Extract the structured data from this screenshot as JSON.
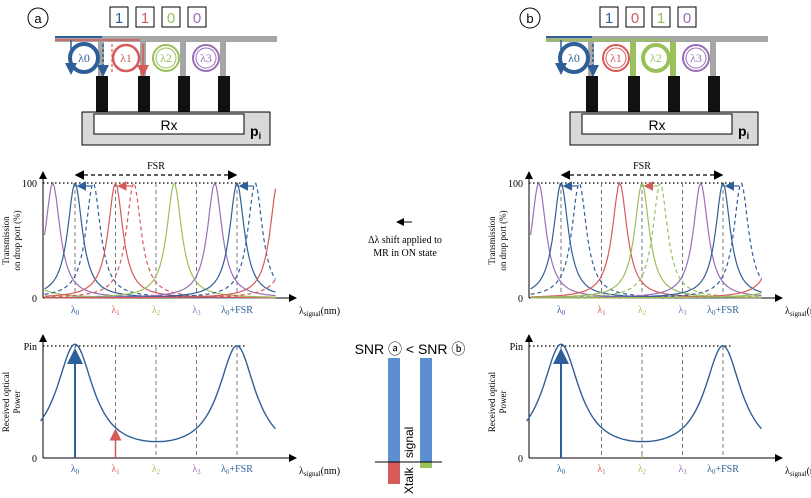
{
  "colors": {
    "blue": "#2f5f98",
    "red": "#d65a5a",
    "green": "#9ac05a",
    "purple": "#9a6fb8",
    "bar_blue": "#5b8fcf",
    "waveguide": "#a6a6a6",
    "waveguide_green": "#9ac05a"
  },
  "panel_a": {
    "label": "a",
    "bits": [
      "1",
      "1",
      "0",
      "0"
    ],
    "receiver_label": "Rx",
    "power_label": "p",
    "power_sub": "i"
  },
  "panel_b": {
    "label": "b",
    "bits": [
      "1",
      "0",
      "1",
      "0"
    ],
    "receiver_label": "Rx",
    "power_label": "p",
    "power_sub": "i"
  },
  "ring_labels": [
    "λ0",
    "λ1",
    "λ2",
    "λ3"
  ],
  "transmission_plot": {
    "fsr_label": "FSR",
    "ylabel_line1": "Transmission",
    "ylabel_line2": "on drop port (%)",
    "y_max_label": "100",
    "y_min_label": "0",
    "xlabel_main": "λ",
    "xlabel_sub": "signal",
    "xlabel_unit": "(nm)"
  },
  "power_plot": {
    "ylabel_line1": "Received optical",
    "ylabel_line2": "Power",
    "y_max_label": "Pin",
    "y_min_label": "0",
    "xlabel_main": "λ",
    "xlabel_sub": "signal",
    "xlabel_unit": "(nm)"
  },
  "x_ticks": [
    "λ0",
    "λ1",
    "λ2",
    "λ3",
    "λ0+FSR"
  ],
  "legend_shift": {
    "line1": "Δλ shift applied to",
    "line2": "MR in ON state"
  },
  "snr": {
    "text": "SNR ⓐ < SNR ⓑ",
    "bar_signal_label": "signal",
    "bar_xtalk_label": "Xtalk"
  }
}
